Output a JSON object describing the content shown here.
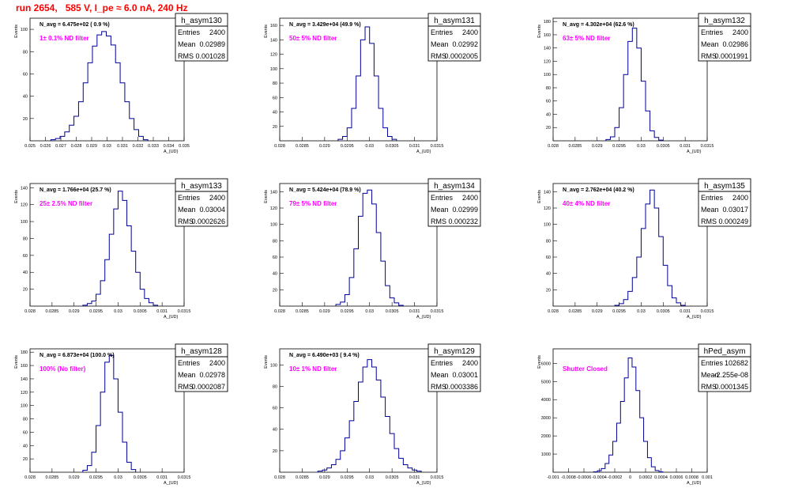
{
  "canvas_title": "run 2654,   585 V, I_pe ≈ 6.0 nA, 240 Hz",
  "colors": {
    "title": "#ff0000",
    "line": "#000099",
    "filter_label": "#ff00ff",
    "axes": "#000000"
  },
  "chart_data": [
    {
      "type": "area",
      "histname": "h_asym130",
      "stats": {
        "entries": "2400",
        "mean": "0.02989",
        "rms": "0.001028"
      },
      "navg_label": "N_avg = 6.475e+02 ( 0.9 %)",
      "filter_label": "1± 0.1% ND filter",
      "ylabel": "Events",
      "xlabel": "A_{UD}",
      "xlim": [
        0.025,
        0.035
      ],
      "ylim": [
        0,
        110
      ],
      "yticks": [
        "20",
        "40",
        "60",
        "80",
        "100"
      ],
      "xticks": [
        "0.025",
        "0.026",
        "0.027",
        "0.028",
        "0.029",
        "0.03",
        "0.031",
        "0.032",
        "0.033",
        "0.034",
        "0.035"
      ],
      "peak": 98,
      "x": [
        0.0265,
        0.0268,
        0.0271,
        0.0274,
        0.0277,
        0.028,
        0.0283,
        0.0286,
        0.0289,
        0.0292,
        0.0295,
        0.0298,
        0.0301,
        0.0304,
        0.0307,
        0.031,
        0.0313,
        0.0316,
        0.0319,
        0.0322,
        0.0325
      ],
      "values": [
        1,
        2,
        4,
        8,
        14,
        22,
        35,
        52,
        70,
        85,
        95,
        98,
        94,
        86,
        70,
        52,
        35,
        20,
        10,
        4,
        1
      ]
    },
    {
      "type": "area",
      "histname": "h_asym131",
      "stats": {
        "entries": "2400",
        "mean": "0.02992",
        "rms": "0.0002005"
      },
      "navg_label": "N_avg = 3.429e+04 (49.9 %)",
      "filter_label": "50± 5% ND filter",
      "ylabel": "Events",
      "xlabel": "A_{UD}",
      "xlim": [
        0.028,
        0.0315
      ],
      "ylim": [
        0,
        170
      ],
      "yticks": [
        "20",
        "40",
        "60",
        "80",
        "100",
        "120",
        "140",
        "160"
      ],
      "xticks": [
        "0.028",
        "0.0285",
        "0.029",
        "0.0295",
        "0.03",
        "0.0305",
        "0.031",
        "0.0315"
      ],
      "peak": 158,
      "x": [
        0.02935,
        0.02945,
        0.02955,
        0.02965,
        0.02975,
        0.02985,
        0.02995,
        0.03005,
        0.03015,
        0.03025,
        0.03035,
        0.03045,
        0.03055
      ],
      "values": [
        2,
        6,
        18,
        45,
        90,
        140,
        158,
        135,
        90,
        45,
        18,
        6,
        2
      ]
    },
    {
      "type": "area",
      "histname": "h_asym132",
      "stats": {
        "entries": "2400",
        "mean": "0.02986",
        "rms": "0.0001991"
      },
      "navg_label": "N_avg = 4.302e+04 (62.6 %)",
      "filter_label": "63± 5% ND filter",
      "ylabel": "Events",
      "xlabel": "A_{UD}",
      "xlim": [
        0.028,
        0.0315
      ],
      "ylim": [
        0,
        185
      ],
      "yticks": [
        "20",
        "40",
        "60",
        "80",
        "100",
        "120",
        "140",
        "160",
        "180"
      ],
      "xticks": [
        "0.028",
        "0.0285",
        "0.029",
        "0.0295",
        "0.03",
        "0.0305",
        "0.031",
        "0.0315"
      ],
      "peak": 170,
      "x": [
        0.02925,
        0.02935,
        0.02945,
        0.02955,
        0.02965,
        0.02975,
        0.02985,
        0.02995,
        0.03005,
        0.03015,
        0.03025,
        0.03035,
        0.03045
      ],
      "values": [
        2,
        6,
        20,
        50,
        100,
        150,
        170,
        140,
        90,
        45,
        15,
        5,
        1
      ]
    },
    {
      "type": "area",
      "histname": "h_asym133",
      "stats": {
        "entries": "2400",
        "mean": "0.03004",
        "rms": "0.0002626"
      },
      "navg_label": "N_avg = 1.766e+04 (25.7 %)",
      "filter_label": "25± 2.5% ND filter",
      "ylabel": "Events",
      "xlabel": "A_{UD}",
      "xlim": [
        0.028,
        0.0315
      ],
      "ylim": [
        0,
        145
      ],
      "yticks": [
        "20",
        "40",
        "60",
        "80",
        "100",
        "120",
        "140"
      ],
      "xticks": [
        "0.028",
        "0.0285",
        "0.029",
        "0.0295",
        "0.03",
        "0.0305",
        "0.031",
        "0.0315"
      ],
      "peak": 136,
      "x": [
        0.02925,
        0.02935,
        0.02945,
        0.02955,
        0.02965,
        0.02975,
        0.02985,
        0.02995,
        0.03005,
        0.03015,
        0.03025,
        0.03035,
        0.03045,
        0.03055,
        0.03065,
        0.03075,
        0.03085
      ],
      "values": [
        1,
        3,
        6,
        14,
        30,
        55,
        85,
        115,
        136,
        125,
        95,
        65,
        40,
        20,
        9,
        4,
        1
      ]
    },
    {
      "type": "area",
      "histname": "h_asym134",
      "stats": {
        "entries": "2400",
        "mean": "0.02999",
        "rms": "0.000232"
      },
      "navg_label": "N_avg = 5.424e+04 (78.9 %)",
      "filter_label": "79± 5% ND filter",
      "ylabel": "Events",
      "xlabel": "A_{UD}",
      "xlim": [
        0.028,
        0.0315
      ],
      "ylim": [
        0,
        150
      ],
      "yticks": [
        "20",
        "40",
        "60",
        "80",
        "100",
        "120",
        "140"
      ],
      "xticks": [
        "0.028",
        "0.0285",
        "0.029",
        "0.0295",
        "0.03",
        "0.0305",
        "0.031",
        "0.0315"
      ],
      "peak": 142,
      "x": [
        0.0293,
        0.0294,
        0.0295,
        0.0296,
        0.0297,
        0.0298,
        0.0299,
        0.03,
        0.0301,
        0.0302,
        0.0303,
        0.0304,
        0.0305,
        0.0306,
        0.0307
      ],
      "values": [
        2,
        5,
        14,
        35,
        70,
        110,
        138,
        142,
        125,
        90,
        55,
        25,
        10,
        4,
        1
      ]
    },
    {
      "type": "area",
      "histname": "h_asym135",
      "stats": {
        "entries": "2400",
        "mean": "0.03017",
        "rms": "0.000249"
      },
      "navg_label": "N_avg = 2.762e+04 (40.2 %)",
      "filter_label": "40± 4% ND filter",
      "ylabel": "Events",
      "xlabel": "A_{UD}",
      "xlim": [
        0.028,
        0.0315
      ],
      "ylim": [
        0,
        150
      ],
      "yticks": [
        "20",
        "40",
        "60",
        "80",
        "100",
        "120",
        "140"
      ],
      "xticks": [
        "0.028",
        "0.0285",
        "0.029",
        "0.0295",
        "0.03",
        "0.0305",
        "0.031",
        "0.0315"
      ],
      "peak": 142,
      "x": [
        0.02945,
        0.02955,
        0.02965,
        0.02975,
        0.02985,
        0.02995,
        0.03005,
        0.03015,
        0.03025,
        0.03035,
        0.03045,
        0.03055,
        0.03065,
        0.03075,
        0.03085,
        0.03095
      ],
      "values": [
        1,
        3,
        8,
        18,
        35,
        60,
        95,
        125,
        142,
        120,
        85,
        50,
        25,
        10,
        4,
        1
      ]
    },
    {
      "type": "area",
      "histname": "h_asym128",
      "stats": {
        "entries": "2400",
        "mean": "0.02978",
        "rms": "0.0002087"
      },
      "navg_label": "N_avg = 6.873e+04 (100.0 %)",
      "filter_label": "100% (No filter)",
      "ylabel": "Events",
      "xlabel": "A_{UD}",
      "xlim": [
        0.028,
        0.0315
      ],
      "ylim": [
        0,
        185
      ],
      "yticks": [
        "20",
        "40",
        "60",
        "80",
        "100",
        "120",
        "140",
        "160",
        "180"
      ],
      "xticks": [
        "0.028",
        "0.0285",
        "0.029",
        "0.0295",
        "0.03",
        "0.0305",
        "0.031",
        "0.0315"
      ],
      "peak": 175,
      "x": [
        0.02925,
        0.02935,
        0.02945,
        0.02955,
        0.02965,
        0.02975,
        0.02985,
        0.02995,
        0.03005,
        0.03015,
        0.03025,
        0.03035
      ],
      "values": [
        3,
        10,
        30,
        70,
        120,
        165,
        175,
        140,
        90,
        45,
        15,
        4
      ]
    },
    {
      "type": "area",
      "histname": "h_asym129",
      "stats": {
        "entries": "2400",
        "mean": "0.03001",
        "rms": "0.0003386"
      },
      "navg_label": "N_avg = 6.490e+03 ( 9.4 %)",
      "filter_label": "10± 1% ND filter",
      "ylabel": "Events",
      "xlabel": "A_{UD}",
      "xlim": [
        0.028,
        0.0315
      ],
      "ylim": [
        0,
        115
      ],
      "yticks": [
        "20",
        "40",
        "60",
        "80",
        "100"
      ],
      "xticks": [
        "0.028",
        "0.0285",
        "0.029",
        "0.0295",
        "0.03",
        "0.0305",
        "0.031",
        "0.0315"
      ],
      "peak": 105,
      "x": [
        0.0289,
        0.029,
        0.0291,
        0.0292,
        0.0293,
        0.0294,
        0.0295,
        0.0296,
        0.0297,
        0.0298,
        0.0299,
        0.03,
        0.0301,
        0.0302,
        0.0303,
        0.0304,
        0.0305,
        0.0306,
        0.0307,
        0.0308,
        0.0309,
        0.031,
        0.0311
      ],
      "values": [
        1,
        2,
        4,
        7,
        12,
        20,
        32,
        48,
        66,
        84,
        98,
        105,
        98,
        86,
        70,
        52,
        36,
        22,
        13,
        7,
        4,
        2,
        1
      ]
    },
    {
      "type": "area",
      "histname": "hPed_asym",
      "stats": {
        "entries": "102682",
        "mean": "-2.255e-08",
        "rms": "0.0001345"
      },
      "navg_label": "",
      "filter_label": "Shutter Closed",
      "ylabel": "Events",
      "xlabel": "A_{UD}",
      "xlim": [
        -0.001,
        0.001
      ],
      "ylim": [
        0,
        6800
      ],
      "yticks": [
        "1000",
        "2000",
        "3000",
        "4000",
        "5000",
        "6000"
      ],
      "xticks": [
        "-0.001",
        "-0.0008",
        "-0.0006",
        "-0.0004",
        "-0.0002",
        "0",
        "0.0002",
        "0.0004",
        "0.0006",
        "0.0008",
        "0.001"
      ],
      "peak": 6300,
      "x": [
        -0.00045,
        -0.0004,
        -0.00035,
        -0.0003,
        -0.00025,
        -0.0002,
        -0.00015,
        -0.0001,
        -5e-05,
        0,
        5e-05,
        0.0001,
        0.00015,
        0.0002,
        0.00025,
        0.0003,
        0.00035,
        0.0004
      ],
      "values": [
        20,
        80,
        200,
        480,
        950,
        1700,
        2700,
        3900,
        5200,
        6300,
        5800,
        4500,
        3000,
        1700,
        800,
        300,
        90,
        20
      ]
    }
  ]
}
